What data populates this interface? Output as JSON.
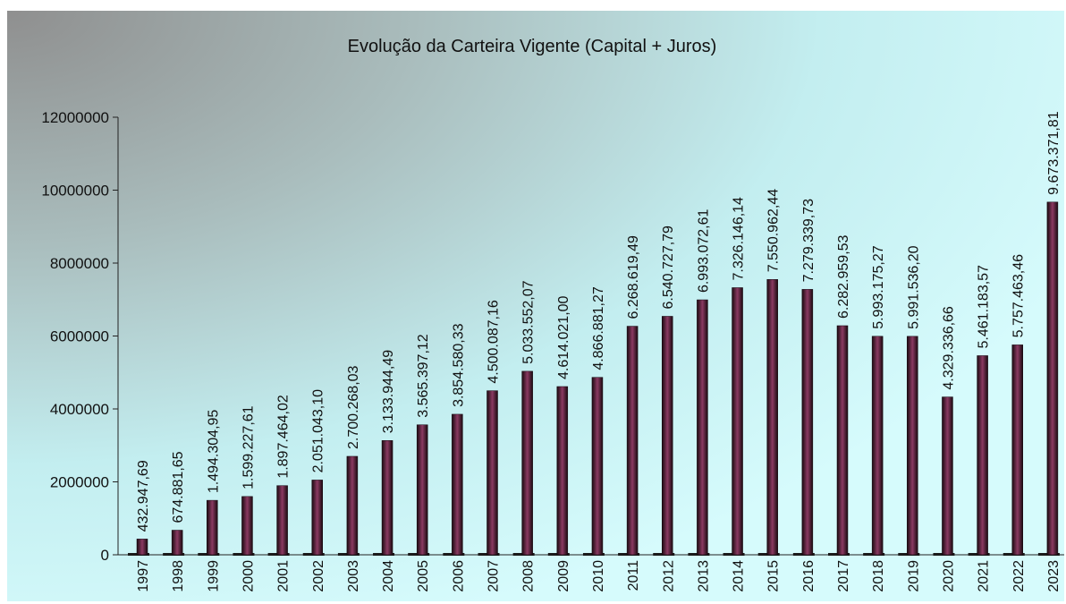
{
  "chart_data": {
    "type": "bar",
    "title": "Evolução da Carteira Vigente (Capital + Juros)",
    "categories": [
      "1997",
      "1998",
      "1999",
      "2000",
      "2001",
      "2002",
      "2003",
      "2004",
      "2005",
      "2006",
      "2007",
      "2008",
      "2009",
      "2010",
      "2011",
      "2012",
      "2013",
      "2014",
      "2015",
      "2016",
      "2017",
      "2018",
      "2019",
      "2020",
      "2021",
      "2022",
      "2023"
    ],
    "values": [
      432947.69,
      674881.65,
      1494304.95,
      1599227.61,
      1897464.02,
      2051043.1,
      2700268.03,
      3133944.49,
      3565397.12,
      3854580.33,
      4500087.16,
      5033552.07,
      4614021.0,
      4866881.27,
      6268619.49,
      6540727.79,
      6993072.61,
      7326146.14,
      7550962.44,
      7279339.73,
      6282959.53,
      5993175.27,
      5991536.2,
      4329336.66,
      5461183.57,
      5757463.46,
      9673371.81
    ],
    "value_labels": [
      "432.947,69",
      "674.881,65",
      "1.494.304,95",
      "1.599.227,61",
      "1.897.464,02",
      "2.051.043,10",
      "2.700.268,03",
      "3.133.944,49",
      "3.565.397,12",
      "3.854.580,33",
      "4.500.087,16",
      "5.033.552,07",
      "4.614.021,00",
      "4.866.881,27",
      "6.268.619,49",
      "6.540.727,79",
      "6.993.072,61",
      "7.326.146,14",
      "7.550.962,44",
      "7.279.339,73",
      "6.282.959,53",
      "5.993.175,27",
      "5.991.536,20",
      "4.329.336,66",
      "5.461.183,57",
      "5.757.463,46",
      "9.673.371,81"
    ],
    "color": "#7a2a4e",
    "ylim": [
      0,
      12000000
    ],
    "yticks": [
      0,
      2000000,
      4000000,
      6000000,
      8000000,
      10000000,
      12000000
    ],
    "grid": false
  }
}
